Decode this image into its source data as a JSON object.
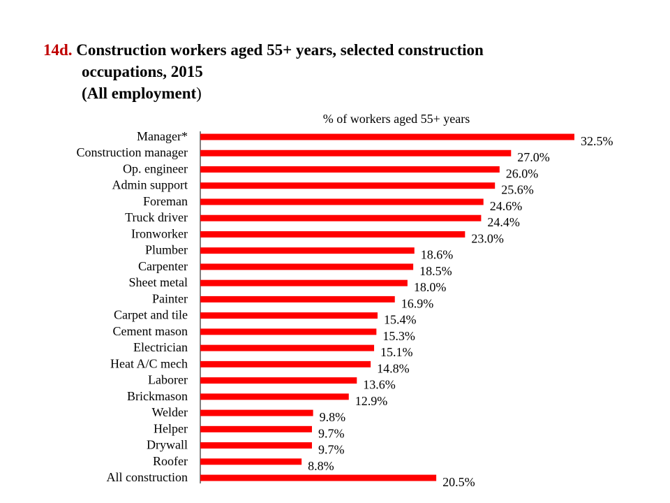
{
  "title": {
    "number": "14d.",
    "line1": "Construction workers aged 55+ years, selected construction",
    "line2": "occupations, 2015",
    "line3": "(All employment",
    "line3_close": ")"
  },
  "chart_data": {
    "type": "bar",
    "orientation": "horizontal",
    "xlabel": "% of workers aged 55+ years",
    "bar_color": "#ff0000",
    "categories": [
      "Manager*",
      "Construction manager",
      "Op. engineer",
      "Admin support",
      "Foreman",
      "Truck driver",
      "Ironworker",
      "Plumber",
      "Carpenter",
      "Sheet metal",
      "Painter",
      "Carpet and tile",
      "Cement mason",
      "Electrician",
      "Heat A/C mech",
      "Laborer",
      "Brickmason",
      "Welder",
      "Helper",
      "Drywall",
      "Roofer",
      "All construction"
    ],
    "values": [
      32.5,
      27.0,
      26.0,
      25.6,
      24.6,
      24.4,
      23.0,
      18.6,
      18.5,
      18.0,
      16.9,
      15.4,
      15.3,
      15.1,
      14.8,
      13.6,
      12.9,
      9.8,
      9.7,
      9.7,
      8.8,
      20.5
    ],
    "value_labels": [
      "32.5%",
      "27.0%",
      "26.0%",
      "25.6%",
      "24.6%",
      "24.4%",
      "23.0%",
      "18.6%",
      "18.5%",
      "18.0%",
      "16.9%",
      "15.4%",
      "15.3%",
      "15.1%",
      "14.8%",
      "13.6%",
      "12.9%",
      "9.8%",
      "9.7%",
      "9.7%",
      "8.8%",
      "20.5%"
    ],
    "xlim": [
      0,
      32.5
    ]
  }
}
